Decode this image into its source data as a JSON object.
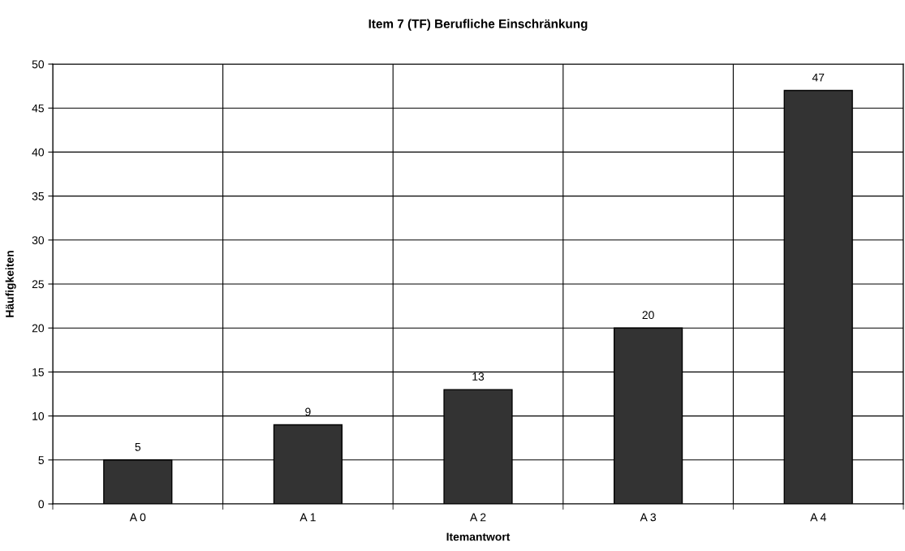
{
  "chart_data": {
    "type": "bar",
    "title": "Item 7 (TF) Berufliche Einschränkung",
    "xlabel": "Itemantwort",
    "ylabel": "Häufigkeiten",
    "categories": [
      "A 0",
      "A 1",
      "A 2",
      "A 3",
      "A 4"
    ],
    "values": [
      5,
      9,
      13,
      20,
      47
    ],
    "color": "#333333",
    "ylim": [
      0,
      50
    ],
    "yticks": [
      0,
      5,
      10,
      15,
      20,
      25,
      30,
      35,
      40,
      45,
      50
    ],
    "grid": true,
    "data_labels": true
  }
}
